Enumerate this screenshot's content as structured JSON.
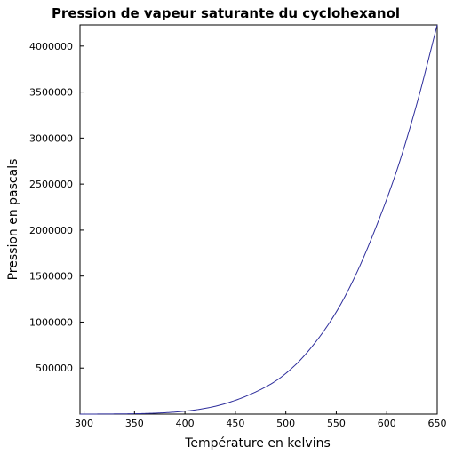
{
  "chart_data": {
    "type": "line",
    "title": "Pression de vapeur saturante du cyclohexanol",
    "xlabel": "Température en kelvins",
    "ylabel": "Pression en pascals",
    "xlim": [
      296.0,
      650
    ],
    "ylim": [
      0,
      4230000
    ],
    "xticks": [
      300,
      350,
      400,
      450,
      500,
      550,
      600,
      650
    ],
    "yticks": [
      500000,
      1000000,
      1500000,
      2000000,
      2500000,
      3000000,
      3500000,
      4000000
    ],
    "grid": false,
    "series": [
      {
        "color": "#2e2e9c",
        "x": [
          296,
          310,
          330,
          350,
          370,
          390,
          410,
          430,
          450,
          470,
          490,
          510,
          530,
          550,
          570,
          590,
          610,
          630,
          650
        ],
        "y": [
          0,
          500,
          1800,
          4000,
          10000,
          22000,
          45000,
          85000,
          150000,
          240000,
          360000,
          540000,
          790000,
          1110000,
          1530000,
          2050000,
          2650000,
          3380000,
          4230000
        ]
      }
    ]
  }
}
